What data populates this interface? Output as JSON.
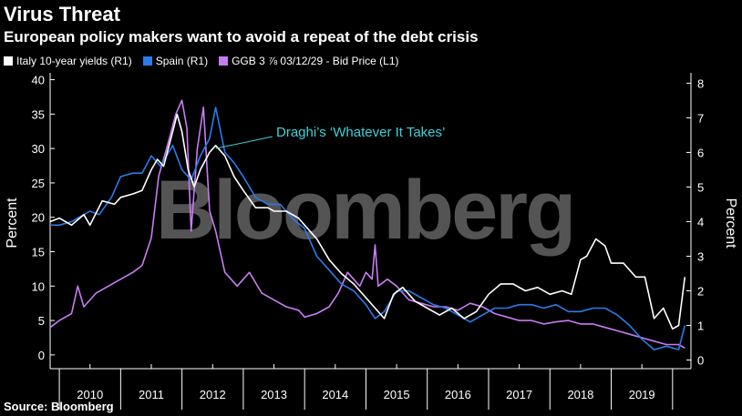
{
  "header": {
    "title": "Virus Threat",
    "subtitle": "European policy makers want to avoid a repeat of the debt crisis"
  },
  "source": "Source: Bloomberg",
  "watermark": "Bloomberg",
  "colors": {
    "italy": "#ffffff",
    "spain": "#2b7be8",
    "ggb": "#c87cf2",
    "annotation": "#3fd0d8",
    "background": "#000000"
  },
  "chart_data": {
    "type": "line",
    "title": "Virus Threat",
    "subtitle": "European policy makers want to avoid a repeat of the debt crisis",
    "ylabel_left": "Percent",
    "ylabel_right": "Percent",
    "ylim_left": [
      -2,
      41
    ],
    "ylim_right": [
      -0.25,
      8.3
    ],
    "yticks_left": [
      0,
      5,
      10,
      15,
      20,
      25,
      30,
      35,
      40
    ],
    "yticks_right": [
      0,
      1,
      2,
      3,
      4,
      5,
      6,
      7,
      8
    ],
    "xlim": [
      2009.85,
      2020.3
    ],
    "xticks": [
      "2010",
      "2011",
      "2012",
      "2013",
      "2014",
      "2015",
      "2016",
      "2017",
      "2018",
      "2019"
    ],
    "grid": false,
    "legend_position": "top-left",
    "annotation": {
      "text": "Draghi’s ‘Whatever It Takes’",
      "x": 2012.55,
      "y": 30
    },
    "series": [
      {
        "name": "Italy 10-year yields (R1)",
        "axis": "right",
        "x": [
          2009.85,
          2010.0,
          2010.2,
          2010.4,
          2010.5,
          2010.7,
          2010.9,
          2011.0,
          2011.2,
          2011.35,
          2011.5,
          2011.6,
          2011.7,
          2011.85,
          2011.92,
          2012.0,
          2012.1,
          2012.2,
          2012.3,
          2012.45,
          2012.55,
          2012.7,
          2012.85,
          2013.0,
          2013.2,
          2013.4,
          2013.5,
          2013.7,
          2013.9,
          2014.0,
          2014.2,
          2014.4,
          2014.6,
          2014.8,
          2015.0,
          2015.15,
          2015.3,
          2015.45,
          2015.6,
          2015.8,
          2016.0,
          2016.2,
          2016.4,
          2016.6,
          2016.8,
          2017.0,
          2017.2,
          2017.4,
          2017.6,
          2017.8,
          2018.0,
          2018.2,
          2018.35,
          2018.5,
          2018.6,
          2018.75,
          2018.9,
          2019.0,
          2019.2,
          2019.4,
          2019.55,
          2019.7,
          2019.85,
          2020.0,
          2020.1,
          2020.2
        ],
        "values": [
          4.0,
          4.1,
          3.9,
          4.2,
          3.9,
          4.6,
          4.5,
          4.7,
          4.8,
          4.9,
          5.5,
          5.8,
          5.6,
          6.6,
          7.1,
          6.6,
          5.5,
          5.0,
          5.5,
          6.0,
          6.2,
          5.9,
          5.3,
          4.9,
          4.4,
          4.4,
          4.3,
          4.3,
          4.1,
          3.9,
          3.5,
          2.9,
          2.5,
          2.2,
          1.8,
          1.5,
          1.2,
          1.9,
          2.1,
          1.7,
          1.5,
          1.3,
          1.5,
          1.2,
          1.4,
          1.9,
          2.2,
          2.2,
          2.0,
          2.1,
          1.9,
          2.0,
          1.9,
          2.9,
          3.0,
          3.5,
          3.3,
          2.8,
          2.8,
          2.4,
          2.4,
          1.2,
          1.5,
          0.9,
          1.0,
          2.4
        ]
      },
      {
        "name": "Spain (R1)",
        "axis": "right",
        "x": [
          2009.85,
          2010.0,
          2010.2,
          2010.4,
          2010.5,
          2010.65,
          2010.85,
          2011.0,
          2011.2,
          2011.35,
          2011.5,
          2011.65,
          2011.85,
          2012.0,
          2012.15,
          2012.3,
          2012.45,
          2012.55,
          2012.7,
          2012.85,
          2013.0,
          2013.2,
          2013.4,
          2013.6,
          2013.8,
          2014.0,
          2014.2,
          2014.4,
          2014.6,
          2014.8,
          2015.0,
          2015.15,
          2015.3,
          2015.5,
          2015.7,
          2015.9,
          2016.1,
          2016.3,
          2016.5,
          2016.7,
          2016.9,
          2017.1,
          2017.3,
          2017.5,
          2017.7,
          2017.9,
          2018.1,
          2018.3,
          2018.5,
          2018.7,
          2018.9,
          2019.1,
          2019.3,
          2019.5,
          2019.7,
          2019.9,
          2020.1,
          2020.2
        ],
        "values": [
          3.9,
          3.9,
          4.0,
          4.2,
          4.3,
          4.2,
          4.7,
          5.3,
          5.4,
          5.4,
          5.9,
          5.6,
          6.2,
          5.5,
          5.2,
          5.9,
          6.4,
          7.3,
          6.0,
          5.7,
          5.3,
          4.7,
          4.5,
          4.5,
          4.1,
          3.8,
          3.0,
          2.6,
          2.2,
          2.0,
          1.6,
          1.2,
          1.4,
          2.0,
          2.0,
          1.8,
          1.6,
          1.5,
          1.3,
          1.1,
          1.3,
          1.5,
          1.5,
          1.6,
          1.6,
          1.5,
          1.6,
          1.4,
          1.4,
          1.5,
          1.5,
          1.3,
          1.0,
          0.6,
          0.3,
          0.4,
          0.3,
          1.0
        ]
      },
      {
        "name": "GGB 3 ⅞ 03/12/29 - Bid Price (L1)",
        "axis": "left",
        "x": [
          2009.85,
          2010.0,
          2010.2,
          2010.3,
          2010.4,
          2010.6,
          2010.8,
          2011.0,
          2011.2,
          2011.35,
          2011.5,
          2011.62,
          2011.75,
          2011.9,
          2012.0,
          2012.08,
          2012.15,
          2012.25,
          2012.35,
          2012.45,
          2012.55,
          2012.7,
          2012.9,
          2013.1,
          2013.3,
          2013.5,
          2013.7,
          2013.9,
          2014.0,
          2014.2,
          2014.4,
          2014.55,
          2014.7,
          2014.9,
          2015.0,
          2015.1,
          2015.15,
          2015.2,
          2015.35,
          2015.5,
          2015.7,
          2015.9,
          2016.1,
          2016.3,
          2016.5,
          2016.7,
          2016.9,
          2017.1,
          2017.3,
          2017.5,
          2017.7,
          2017.9,
          2018.1,
          2018.3,
          2018.5,
          2018.7,
          2018.9,
          2019.1,
          2019.3,
          2019.5,
          2019.7,
          2019.9,
          2020.1,
          2020.2
        ],
        "values": [
          4.0,
          5.0,
          6.0,
          10.0,
          7.0,
          9.0,
          10.0,
          11.0,
          12.0,
          13.0,
          17.0,
          26.0,
          30.0,
          35.0,
          37.0,
          33.0,
          18.0,
          30.0,
          36.0,
          21.0,
          18.0,
          12.0,
          10.0,
          12.0,
          9.0,
          8.0,
          7.0,
          6.5,
          5.5,
          6.0,
          7.0,
          9.0,
          12.0,
          10.0,
          12.0,
          11.0,
          16.0,
          10.0,
          11.0,
          10.0,
          8.0,
          7.5,
          7.0,
          7.0,
          6.5,
          7.5,
          7.0,
          6.0,
          5.5,
          5.0,
          5.0,
          4.5,
          4.8,
          5.0,
          4.5,
          4.5,
          4.0,
          3.5,
          3.0,
          2.5,
          2.0,
          1.5,
          1.5,
          1.0
        ]
      }
    ]
  }
}
